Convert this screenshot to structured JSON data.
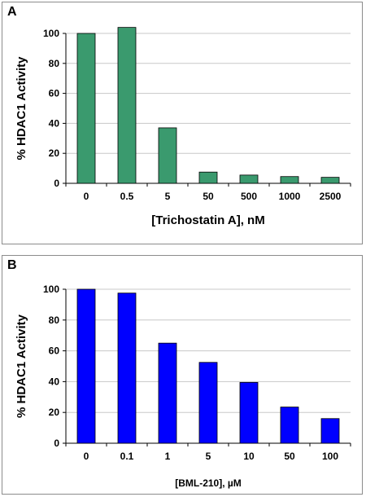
{
  "panels": [
    {
      "letter": "A",
      "chart_data": {
        "type": "bar",
        "categories": [
          "0",
          "0.5",
          "5",
          "50",
          "500",
          "1000",
          "2500"
        ],
        "values": [
          100,
          104,
          37,
          7.5,
          5.5,
          4.5,
          4
        ],
        "xlabel": "[Trichostatin A], nM",
        "ylabel": "% HDAC1 Activity",
        "ylim": [
          0,
          100
        ],
        "yticks": [
          0,
          20,
          40,
          60,
          80,
          100
        ],
        "bar_color": "#3a9a6e",
        "grid": "horizontal"
      }
    },
    {
      "letter": "B",
      "chart_data": {
        "type": "bar",
        "categories": [
          "0",
          "0.1",
          "1",
          "5",
          "10",
          "50",
          "100"
        ],
        "values": [
          100,
          97.5,
          65,
          52.5,
          39.5,
          23.5,
          16
        ],
        "xlabel": "[BML-210], µM",
        "ylabel": "% HDAC1 Activity",
        "ylim": [
          0,
          100
        ],
        "yticks": [
          0,
          20,
          40,
          60,
          80,
          100
        ],
        "bar_color": "#0000ff",
        "grid": "horizontal"
      }
    }
  ]
}
